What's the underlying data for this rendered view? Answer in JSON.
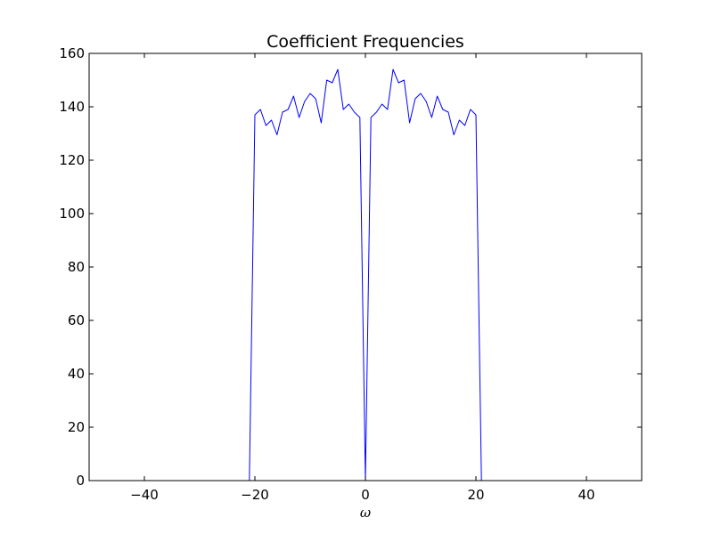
{
  "chart_data": {
    "type": "line",
    "title": "Coefficient Frequencies",
    "xlabel": "ω",
    "ylabel": "",
    "xlim": [
      -50,
      50
    ],
    "ylim": [
      0,
      160
    ],
    "xticks": [
      -40,
      -20,
      0,
      20,
      40
    ],
    "yticks": [
      0,
      20,
      40,
      60,
      80,
      100,
      120,
      140,
      160
    ],
    "grid": false,
    "legend": "none",
    "series": [
      {
        "color": "#0000ff",
        "x": [
          -50,
          -21,
          -20,
          -19,
          -18,
          -17,
          -16,
          -15,
          -14,
          -13,
          -12,
          -11,
          -10,
          -9,
          -8,
          -7,
          -6,
          -5,
          -4,
          -3,
          -2,
          -1,
          0,
          1,
          2,
          3,
          4,
          5,
          6,
          7,
          8,
          9,
          10,
          11,
          12,
          13,
          14,
          15,
          16,
          17,
          18,
          19,
          20,
          21,
          50
        ],
        "values": [
          0,
          0,
          137,
          139,
          133,
          135,
          129.5,
          138,
          139,
          144,
          136,
          142,
          145,
          143,
          134,
          150,
          149,
          154,
          139,
          141,
          138,
          136,
          0,
          136,
          138,
          141,
          139,
          154,
          149,
          150,
          134,
          143,
          145,
          142,
          136,
          144,
          139,
          138,
          129.5,
          135,
          133,
          139,
          137,
          0,
          0
        ]
      }
    ]
  }
}
